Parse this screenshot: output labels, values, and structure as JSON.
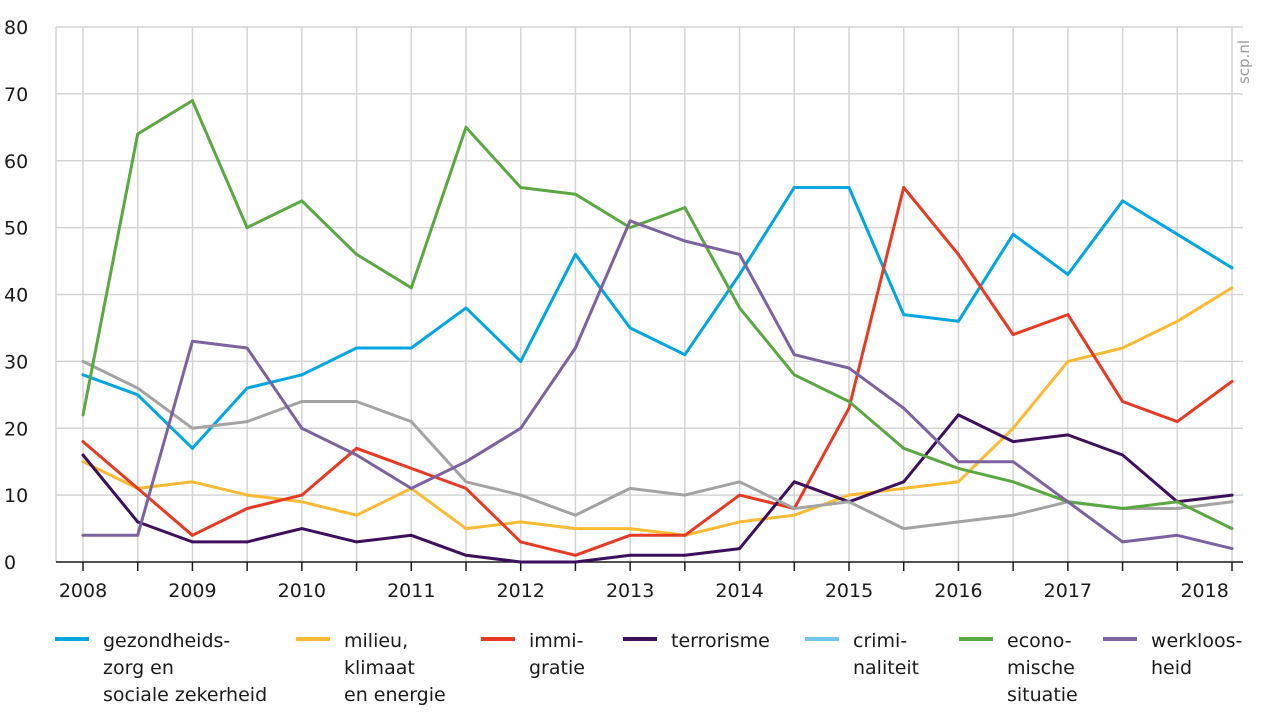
{
  "chart_data": {
    "type": "line",
    "source_label": "scp.nl",
    "ylim": [
      0,
      80
    ],
    "yticks": [
      0,
      10,
      20,
      30,
      40,
      50,
      60,
      70,
      80
    ],
    "grid": true,
    "legend_position": "bottom",
    "x_points": 22,
    "year_labels": [
      {
        "label": "2008",
        "at": 0
      },
      {
        "label": "2009",
        "at": 2
      },
      {
        "label": "2010",
        "at": 4
      },
      {
        "label": "2011",
        "at": 6
      },
      {
        "label": "2012",
        "at": 8
      },
      {
        "label": "2013",
        "at": 10
      },
      {
        "label": "2014",
        "at": 12
      },
      {
        "label": "2015",
        "at": 14
      },
      {
        "label": "2016",
        "at": 16
      },
      {
        "label": "2017",
        "at": 18
      },
      {
        "label": "2018",
        "at": 20.5
      }
    ],
    "series": [
      {
        "name": "gezondheids-\nzorg en\nsociale zekerheid",
        "color": "#00a6e2",
        "values": [
          28,
          25,
          17,
          26,
          28,
          32,
          32,
          38,
          30,
          46,
          35,
          31,
          43,
          56,
          56,
          37,
          36,
          49,
          43,
          54,
          49,
          44
        ]
      },
      {
        "name": "milieu,\nklimaat\nen energie",
        "color": "#fbba33",
        "values": [
          15,
          11,
          12,
          10,
          9,
          7,
          11,
          5,
          6,
          5,
          5,
          4,
          6,
          7,
          10,
          11,
          12,
          20,
          30,
          32,
          36,
          41
        ]
      },
      {
        "name": "immi-\ngratie",
        "color": "#e83a23",
        "values": [
          18,
          11,
          4,
          8,
          10,
          17,
          14,
          11,
          3,
          1,
          4,
          4,
          10,
          8,
          23,
          56,
          46,
          34,
          37,
          24,
          21,
          27
        ]
      },
      {
        "name": "terrorisme",
        "color": "#3d0f5c",
        "values": [
          16,
          6,
          3,
          3,
          5,
          3,
          4,
          1,
          0,
          0,
          1,
          1,
          2,
          12,
          9,
          12,
          22,
          18,
          19,
          16,
          9,
          10
        ]
      },
      {
        "name": "crimi-\nnaliteit",
        "color": "#a3a3a3",
        "legend_color": "#74c6ec",
        "values": [
          30,
          26,
          20,
          21,
          24,
          24,
          21,
          12,
          10,
          7,
          11,
          10,
          12,
          8,
          9,
          5,
          6,
          7,
          9,
          8,
          8,
          9
        ]
      },
      {
        "name": "econo-\nmische\nsituatie",
        "color": "#5aa842",
        "values": [
          22,
          64,
          69,
          50,
          54,
          46,
          41,
          65,
          56,
          55,
          50,
          53,
          38,
          28,
          24,
          17,
          14,
          12,
          9,
          8,
          9,
          5
        ]
      },
      {
        "name": "werkloos-\nheid",
        "color": "#7d62a0",
        "values": [
          4,
          4,
          33,
          32,
          20,
          16,
          11,
          15,
          20,
          32,
          51,
          48,
          46,
          31,
          29,
          23,
          15,
          15,
          9,
          3,
          4,
          2
        ]
      }
    ]
  }
}
